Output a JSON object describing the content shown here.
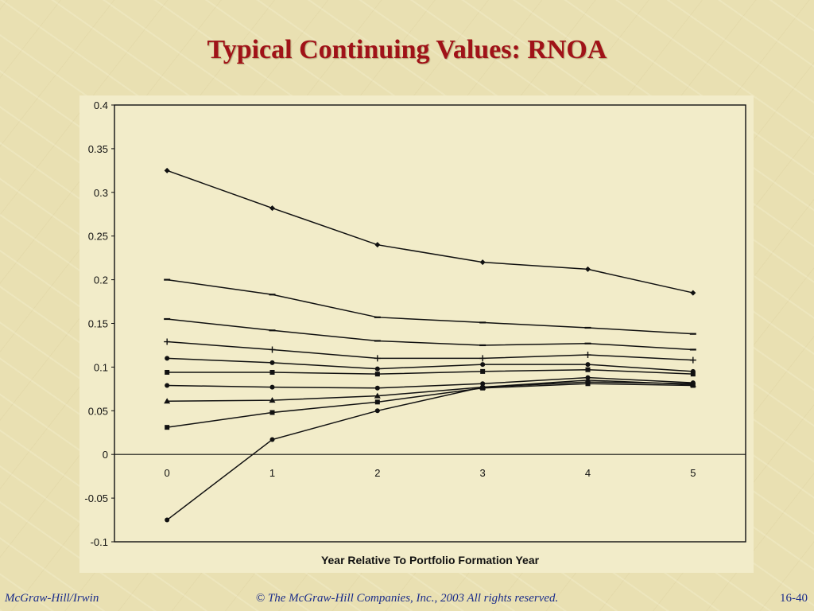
{
  "slide": {
    "title": "Typical Continuing Values: RNOA",
    "footer_left": "McGraw-Hill/Irwin",
    "footer_center": "© The McGraw-Hill Companies, Inc., 2003  All rights reserved.",
    "footer_right": "16-40"
  },
  "chart_data": {
    "type": "line",
    "title": "",
    "xlabel": "Year Relative To Portfolio Formation Year",
    "ylabel": "",
    "x": [
      0,
      1,
      2,
      3,
      4,
      5
    ],
    "xlim": [
      -0.5,
      5.5
    ],
    "ylim": [
      -0.1,
      0.4
    ],
    "yticks": [
      -0.1,
      -0.05,
      0,
      0.05,
      0.1,
      0.15,
      0.2,
      0.25,
      0.3,
      0.35,
      0.4
    ],
    "ytick_labels": [
      "-0.1",
      "-0.05",
      "0",
      "0.05",
      "0.1",
      "0.15",
      "0.2",
      "0.25",
      "0.3",
      "0.35",
      "0.4"
    ],
    "xtick_labels": [
      "0",
      "1",
      "2",
      "3",
      "4",
      "5"
    ],
    "grid": false,
    "series_color": "#111111",
    "series": [
      {
        "marker": "diamond",
        "values": [
          0.325,
          0.282,
          0.24,
          0.22,
          0.212,
          0.185
        ]
      },
      {
        "marker": "dash",
        "values": [
          0.2,
          0.183,
          0.157,
          0.151,
          0.145,
          0.138
        ]
      },
      {
        "marker": "dash",
        "values": [
          0.155,
          0.142,
          0.13,
          0.125,
          0.127,
          0.12
        ]
      },
      {
        "marker": "plus",
        "values": [
          0.129,
          0.12,
          0.11,
          0.11,
          0.114,
          0.108
        ]
      },
      {
        "marker": "circle",
        "values": [
          0.11,
          0.105,
          0.098,
          0.103,
          0.103,
          0.095
        ]
      },
      {
        "marker": "square",
        "values": [
          0.094,
          0.094,
          0.092,
          0.095,
          0.097,
          0.092
        ]
      },
      {
        "marker": "circle",
        "values": [
          0.079,
          0.077,
          0.076,
          0.081,
          0.088,
          0.082
        ]
      },
      {
        "marker": "triangle",
        "values": [
          0.061,
          0.062,
          0.067,
          0.077,
          0.085,
          0.08
        ]
      },
      {
        "marker": "square",
        "values": [
          0.031,
          0.048,
          0.06,
          0.076,
          0.081,
          0.079
        ]
      },
      {
        "marker": "circle",
        "values": [
          -0.075,
          0.017,
          0.05,
          0.077,
          0.083,
          0.081
        ]
      }
    ]
  }
}
